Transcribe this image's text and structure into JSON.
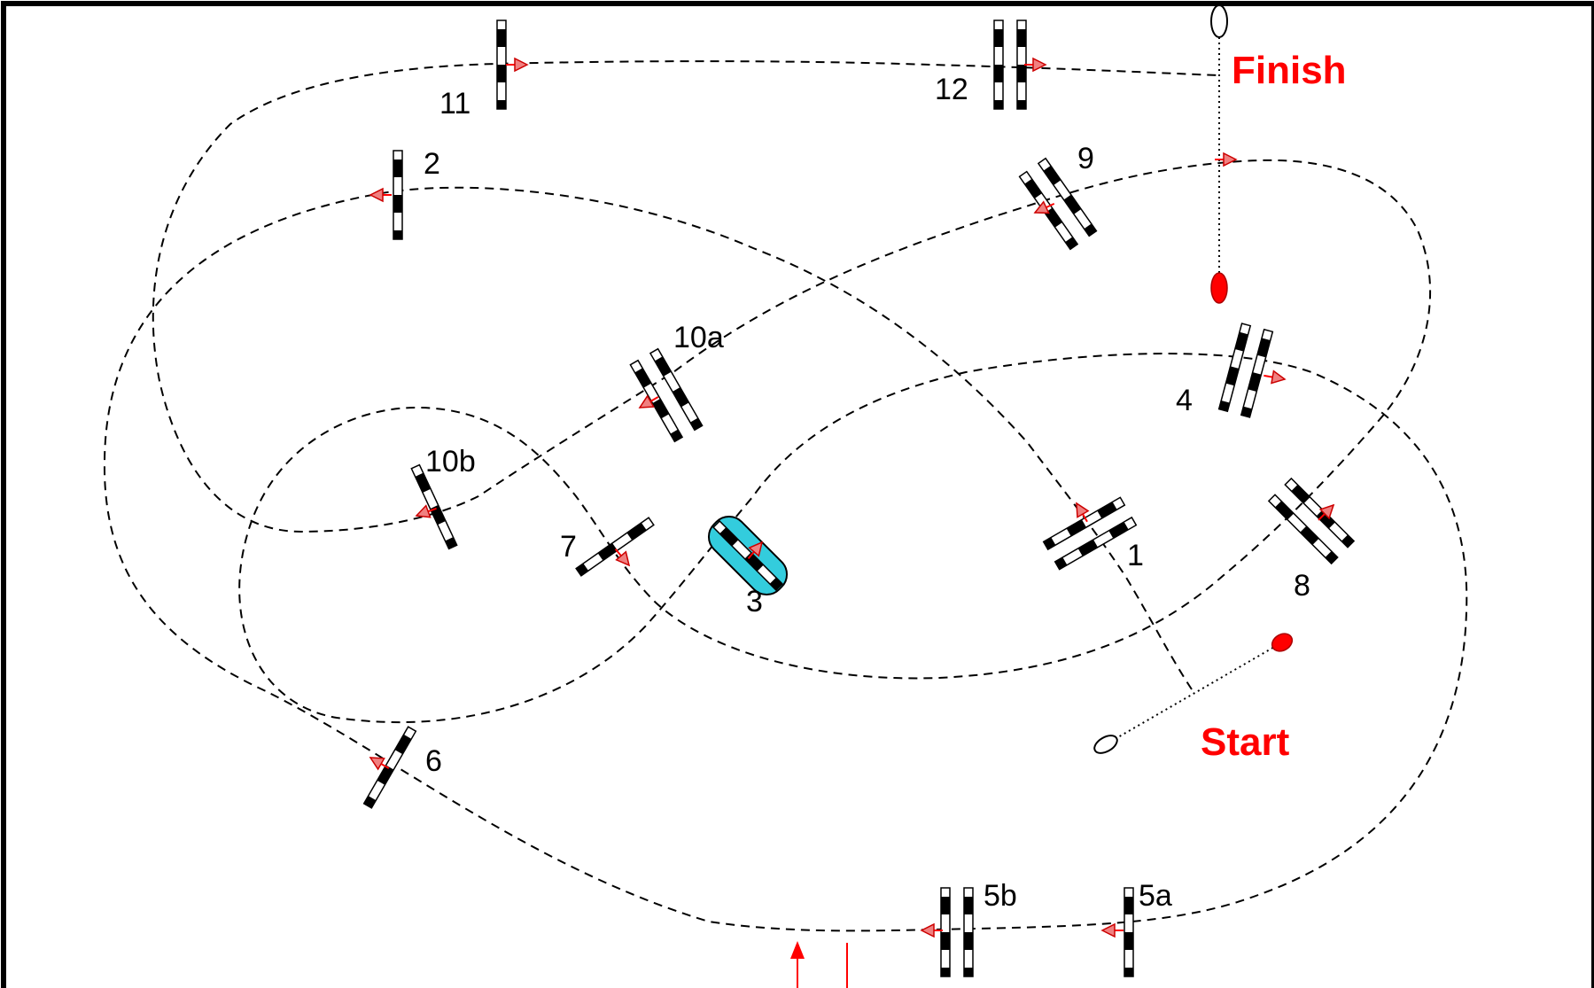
{
  "colors": {
    "accent": "#ff0000",
    "highlight_gate": "#33ccdd",
    "gate_dark": "#000000",
    "gate_light": "#ffffff",
    "path": "#000000"
  },
  "labels": {
    "finish": "Finish",
    "start": "Start"
  },
  "gates": [
    {
      "id": "1",
      "label": "1",
      "poles": 2,
      "highlight": false
    },
    {
      "id": "2",
      "label": "2",
      "poles": 1,
      "highlight": false
    },
    {
      "id": "3",
      "label": "3",
      "poles": 1,
      "highlight": true
    },
    {
      "id": "4",
      "label": "4",
      "poles": 2,
      "highlight": false
    },
    {
      "id": "5a",
      "label": "5a",
      "poles": 1,
      "highlight": false
    },
    {
      "id": "5b",
      "label": "5b",
      "poles": 2,
      "highlight": false
    },
    {
      "id": "6",
      "label": "6",
      "poles": 1,
      "highlight": false
    },
    {
      "id": "7",
      "label": "7",
      "poles": 1,
      "highlight": false
    },
    {
      "id": "8",
      "label": "8",
      "poles": 2,
      "highlight": false
    },
    {
      "id": "9",
      "label": "9",
      "poles": 2,
      "highlight": false
    },
    {
      "id": "10a",
      "label": "10a",
      "poles": 2,
      "highlight": false
    },
    {
      "id": "10b",
      "label": "10b",
      "poles": 1,
      "highlight": false
    },
    {
      "id": "11",
      "label": "11",
      "poles": 1,
      "highlight": false
    },
    {
      "id": "12",
      "label": "12",
      "poles": 2,
      "highlight": false
    }
  ]
}
